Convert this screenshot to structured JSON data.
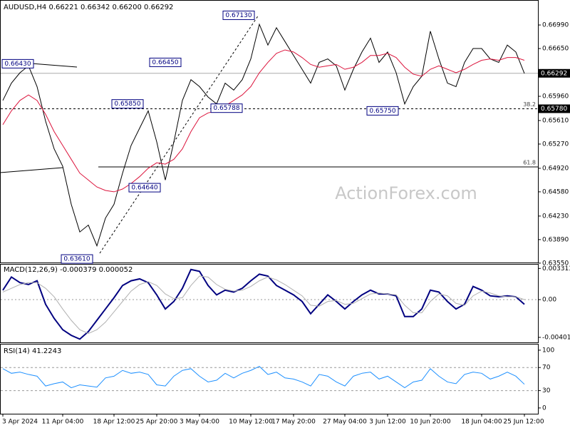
{
  "chart_data": [
    {
      "type": "line",
      "title": "AUDUSD,H4 0.66221 0.66342 0.66200 0.66292",
      "watermark": "ActionForex.com",
      "categories": [
        "3 Apr 2024",
        null,
        null,
        null,
        null,
        null,
        null,
        "11 Apr 04:00",
        null,
        null,
        null,
        null,
        null,
        "18 Apr 12:00",
        null,
        null,
        null,
        null,
        "25 Apr 20:00",
        null,
        null,
        null,
        null,
        "3 May 04:00",
        null,
        null,
        null,
        null,
        null,
        "10 May 12:00",
        null,
        null,
        null,
        null,
        "17 May 20:00",
        null,
        null,
        null,
        null,
        null,
        "27 May 04:00",
        null,
        null,
        null,
        null,
        "3 Jun 12:00",
        null,
        null,
        null,
        null,
        "10 Jun 20:00",
        null,
        null,
        null,
        null,
        null,
        "18 Jun 04:00",
        null,
        null,
        null,
        null,
        "25 Jun 12:00"
      ],
      "series": [
        {
          "color": "#000000",
          "values": [
            0.659,
            0.6615,
            0.663,
            0.664,
            0.661,
            0.656,
            0.652,
            0.6495,
            0.644,
            0.64,
            0.641,
            0.638,
            0.642,
            0.644,
            0.6485,
            0.6525,
            0.655,
            0.6575,
            0.653,
            0.6475,
            0.653,
            0.659,
            0.662,
            0.661,
            0.6595,
            0.6585,
            0.6615,
            0.6605,
            0.662,
            0.665,
            0.67,
            0.667,
            0.6695,
            0.6675,
            0.6655,
            0.6635,
            0.6615,
            0.6645,
            0.665,
            0.664,
            0.6605,
            0.6635,
            0.666,
            0.668,
            0.6645,
            0.666,
            0.663,
            0.6585,
            0.661,
            0.6625,
            0.669,
            0.665,
            0.6615,
            0.661,
            0.6645,
            0.6665,
            0.6665,
            0.665,
            0.6645,
            0.667,
            0.666,
            0.6629
          ]
        },
        {
          "color": "#dc143c",
          "values": [
            0.6555,
            0.6575,
            0.659,
            0.6598,
            0.659,
            0.657,
            0.6545,
            0.6525,
            0.6505,
            0.6485,
            0.6475,
            0.6465,
            0.646,
            0.6458,
            0.6462,
            0.647,
            0.648,
            0.6492,
            0.65,
            0.6498,
            0.6505,
            0.652,
            0.6545,
            0.6565,
            0.6572,
            0.6575,
            0.6582,
            0.659,
            0.6598,
            0.661,
            0.663,
            0.6645,
            0.6658,
            0.6663,
            0.666,
            0.6652,
            0.6642,
            0.6638,
            0.664,
            0.6642,
            0.6635,
            0.6638,
            0.6645,
            0.6655,
            0.6655,
            0.6658,
            0.6652,
            0.6638,
            0.6628,
            0.6625,
            0.6635,
            0.664,
            0.6635,
            0.663,
            0.6635,
            0.6642,
            0.6648,
            0.665,
            0.6648,
            0.6652,
            0.6652,
            0.6648
          ]
        }
      ],
      "ylim": [
        0.63559,
        0.67351
      ],
      "yticks": [
        {
          "value": 0.6699,
          "label": "0.66990"
        },
        {
          "value": 0.6665,
          "label": "0.66650"
        },
        {
          "value": 0.6596,
          "label": "0.65960"
        },
        {
          "value": 0.6561,
          "label": "0.65610"
        },
        {
          "value": 0.6527,
          "label": "0.65270"
        },
        {
          "value": 0.6492,
          "label": "0.64920"
        },
        {
          "value": 0.6458,
          "label": "0.64580"
        },
        {
          "value": 0.6423,
          "label": "0.64230"
        },
        {
          "value": 0.6389,
          "label": "0.63890"
        },
        {
          "value": 0.6355,
          "label": "0.63550"
        }
      ],
      "last_price": {
        "value": 0.66292,
        "label": "0.66292"
      },
      "levels": [
        {
          "name": "38.2",
          "value": 0.6578,
          "label": "0.65780"
        },
        {
          "name": "61.8",
          "value": 0.6494
        }
      ],
      "annotations": [
        {
          "value": 0.6643,
          "label": "0.66430"
        },
        {
          "value": 0.6645,
          "label": "0.66450"
        },
        {
          "value": 0.6713,
          "label": "0.67130"
        },
        {
          "value": 0.6585,
          "label": "0.65850"
        },
        {
          "value": 0.65788,
          "label": "0.65788"
        },
        {
          "value": 0.6575,
          "label": "0.65750"
        },
        {
          "value": 0.6464,
          "label": "0.64640"
        },
        {
          "value": 0.6361,
          "label": "0.63610"
        }
      ]
    },
    {
      "type": "line",
      "title": "MACD(12,26,9) -0.000379 0.000052",
      "series": [
        {
          "color": "#000080",
          "values": [
            0.001,
            0.0024,
            0.0018,
            0.0016,
            0.002,
            -0.0005,
            -0.002,
            -0.0032,
            -0.0038,
            -0.0042,
            -0.0034,
            -0.0022,
            -0.001,
            0.0002,
            0.0015,
            0.002,
            0.0022,
            0.0018,
            0.0005,
            -0.001,
            -0.0002,
            0.0012,
            0.0032,
            0.003,
            0.0015,
            0.0005,
            0.001,
            0.0008,
            0.0012,
            0.002,
            0.0027,
            0.0025,
            0.0015,
            0.001,
            0.0005,
            -0.0002,
            -0.0015,
            -0.0005,
            0.0005,
            -0.0002,
            -0.001,
            -0.0002,
            0.0005,
            0.001,
            0.0006,
            0.0006,
            0.0004,
            -0.0018,
            -0.0018,
            -0.001,
            0.001,
            0.0008,
            -0.0002,
            -0.001,
            -0.0005,
            0.0014,
            0.001,
            0.0004,
            0.0003,
            0.0004,
            0.0003,
            -0.0005
          ]
        },
        {
          "color": "#b0b0b0",
          "values": [
            0.0008,
            0.0012,
            0.0016,
            0.0018,
            0.0018,
            0.0012,
            0.0003,
            -0.001,
            -0.0022,
            -0.0032,
            -0.0036,
            -0.0032,
            -0.0024,
            -0.0013,
            -0.0002,
            0.0009,
            0.0016,
            0.0019,
            0.0015,
            0.0006,
            0.0001,
            0.0002,
            0.0015,
            0.0025,
            0.0024,
            0.0016,
            0.0011,
            0.0009,
            0.001,
            0.0014,
            0.002,
            0.0024,
            0.0021,
            0.0016,
            0.001,
            0.0004,
            -0.0006,
            -0.0007,
            -0.0002,
            -0.0001,
            -0.0005,
            -0.0004,
            0.0001,
            0.0006,
            0.0007,
            0.0006,
            0.0005,
            -0.0006,
            -0.0014,
            -0.0014,
            -0.0002,
            0.0006,
            0.0004,
            -0.0004,
            -0.0006,
            0.0004,
            0.0009,
            0.0007,
            0.0004,
            0.0003,
            0.0003,
            0.0
          ]
        }
      ],
      "ylim": [
        -0.00455,
        0.00379
      ],
      "yticks": [
        0.003313,
        {
          "value": 0,
          "label": "0.00"
        },
        -0.004016
      ]
    },
    {
      "type": "line",
      "title": "RSI(14) 41.2243",
      "series": [
        {
          "color": "#1e90ff",
          "values": [
            68,
            60,
            62,
            58,
            55,
            38,
            42,
            45,
            35,
            40,
            38,
            36,
            52,
            55,
            65,
            60,
            62,
            58,
            40,
            38,
            55,
            65,
            68,
            55,
            45,
            48,
            60,
            52,
            60,
            65,
            72,
            58,
            62,
            52,
            50,
            45,
            38,
            58,
            55,
            45,
            38,
            55,
            60,
            62,
            50,
            55,
            45,
            35,
            45,
            48,
            68,
            55,
            45,
            42,
            58,
            62,
            60,
            50,
            55,
            62,
            55,
            41
          ]
        }
      ],
      "ylim": [
        -10,
        111
      ],
      "yticks": [
        0,
        30,
        70,
        100
      ],
      "levels": [
        {
          "value": 30
        },
        {
          "value": 70
        }
      ]
    }
  ]
}
